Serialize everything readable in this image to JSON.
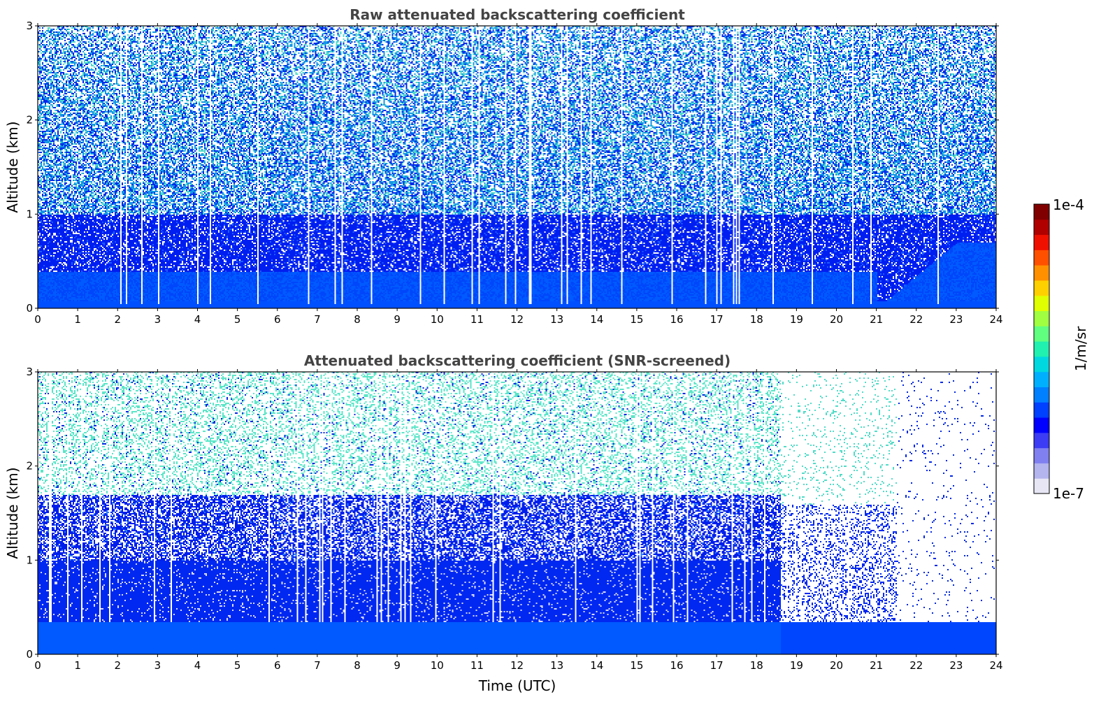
{
  "chart_data": [
    {
      "type": "heatmap",
      "title": "Raw attenuated backscattering coefficient",
      "xlabel": "",
      "ylabel": "Altitude (km)",
      "xlim": [
        0,
        24
      ],
      "ylim": [
        0,
        3
      ],
      "xticks": [
        "0",
        "1",
        "2",
        "3",
        "4",
        "5",
        "6",
        "7",
        "8",
        "9",
        "10",
        "11",
        "12",
        "13",
        "14",
        "15",
        "16",
        "17",
        "18",
        "19",
        "20",
        "21",
        "22",
        "23",
        "24"
      ],
      "yticks": [
        "0",
        "1",
        "2",
        "3"
      ],
      "description_values": {
        "boundary_layer_top_km": 0.4,
        "noisy_region_above_km": 1.0,
        "elevated_layer_21_24h_top_km": 0.7
      }
    },
    {
      "type": "heatmap",
      "title": "Attenuated backscattering coefficient (SNR-screened)",
      "xlabel": "Time (UTC)",
      "ylabel": "Altitude (km)",
      "xlim": [
        0,
        24
      ],
      "ylim": [
        0,
        3
      ],
      "xticks": [
        "0",
        "1",
        "2",
        "3",
        "4",
        "5",
        "6",
        "7",
        "8",
        "9",
        "10",
        "11",
        "12",
        "13",
        "14",
        "15",
        "16",
        "17",
        "18",
        "19",
        "20",
        "21",
        "22",
        "23",
        "24"
      ],
      "yticks": [
        "0",
        "1",
        "2",
        "3"
      ],
      "description_values": {
        "lower_layer_top_km": 0.35,
        "screened_dense_layer_top_km": 1.7,
        "data_gap_start_hour": 21.5
      }
    }
  ],
  "colorbar": {
    "max_label": "1e-4",
    "min_label": "1e-7",
    "unit_label": "1/m/sr",
    "colors": [
      "#e6e6f5",
      "#b4b4ee",
      "#8080f0",
      "#3c3cf5",
      "#0000ff",
      "#0040ff",
      "#0080ff",
      "#00b0ff",
      "#00d8e0",
      "#20f0b0",
      "#60ff80",
      "#a0ff40",
      "#e0ff00",
      "#ffd000",
      "#ff9000",
      "#ff5000",
      "#f01000",
      "#b00000",
      "#800000"
    ]
  }
}
